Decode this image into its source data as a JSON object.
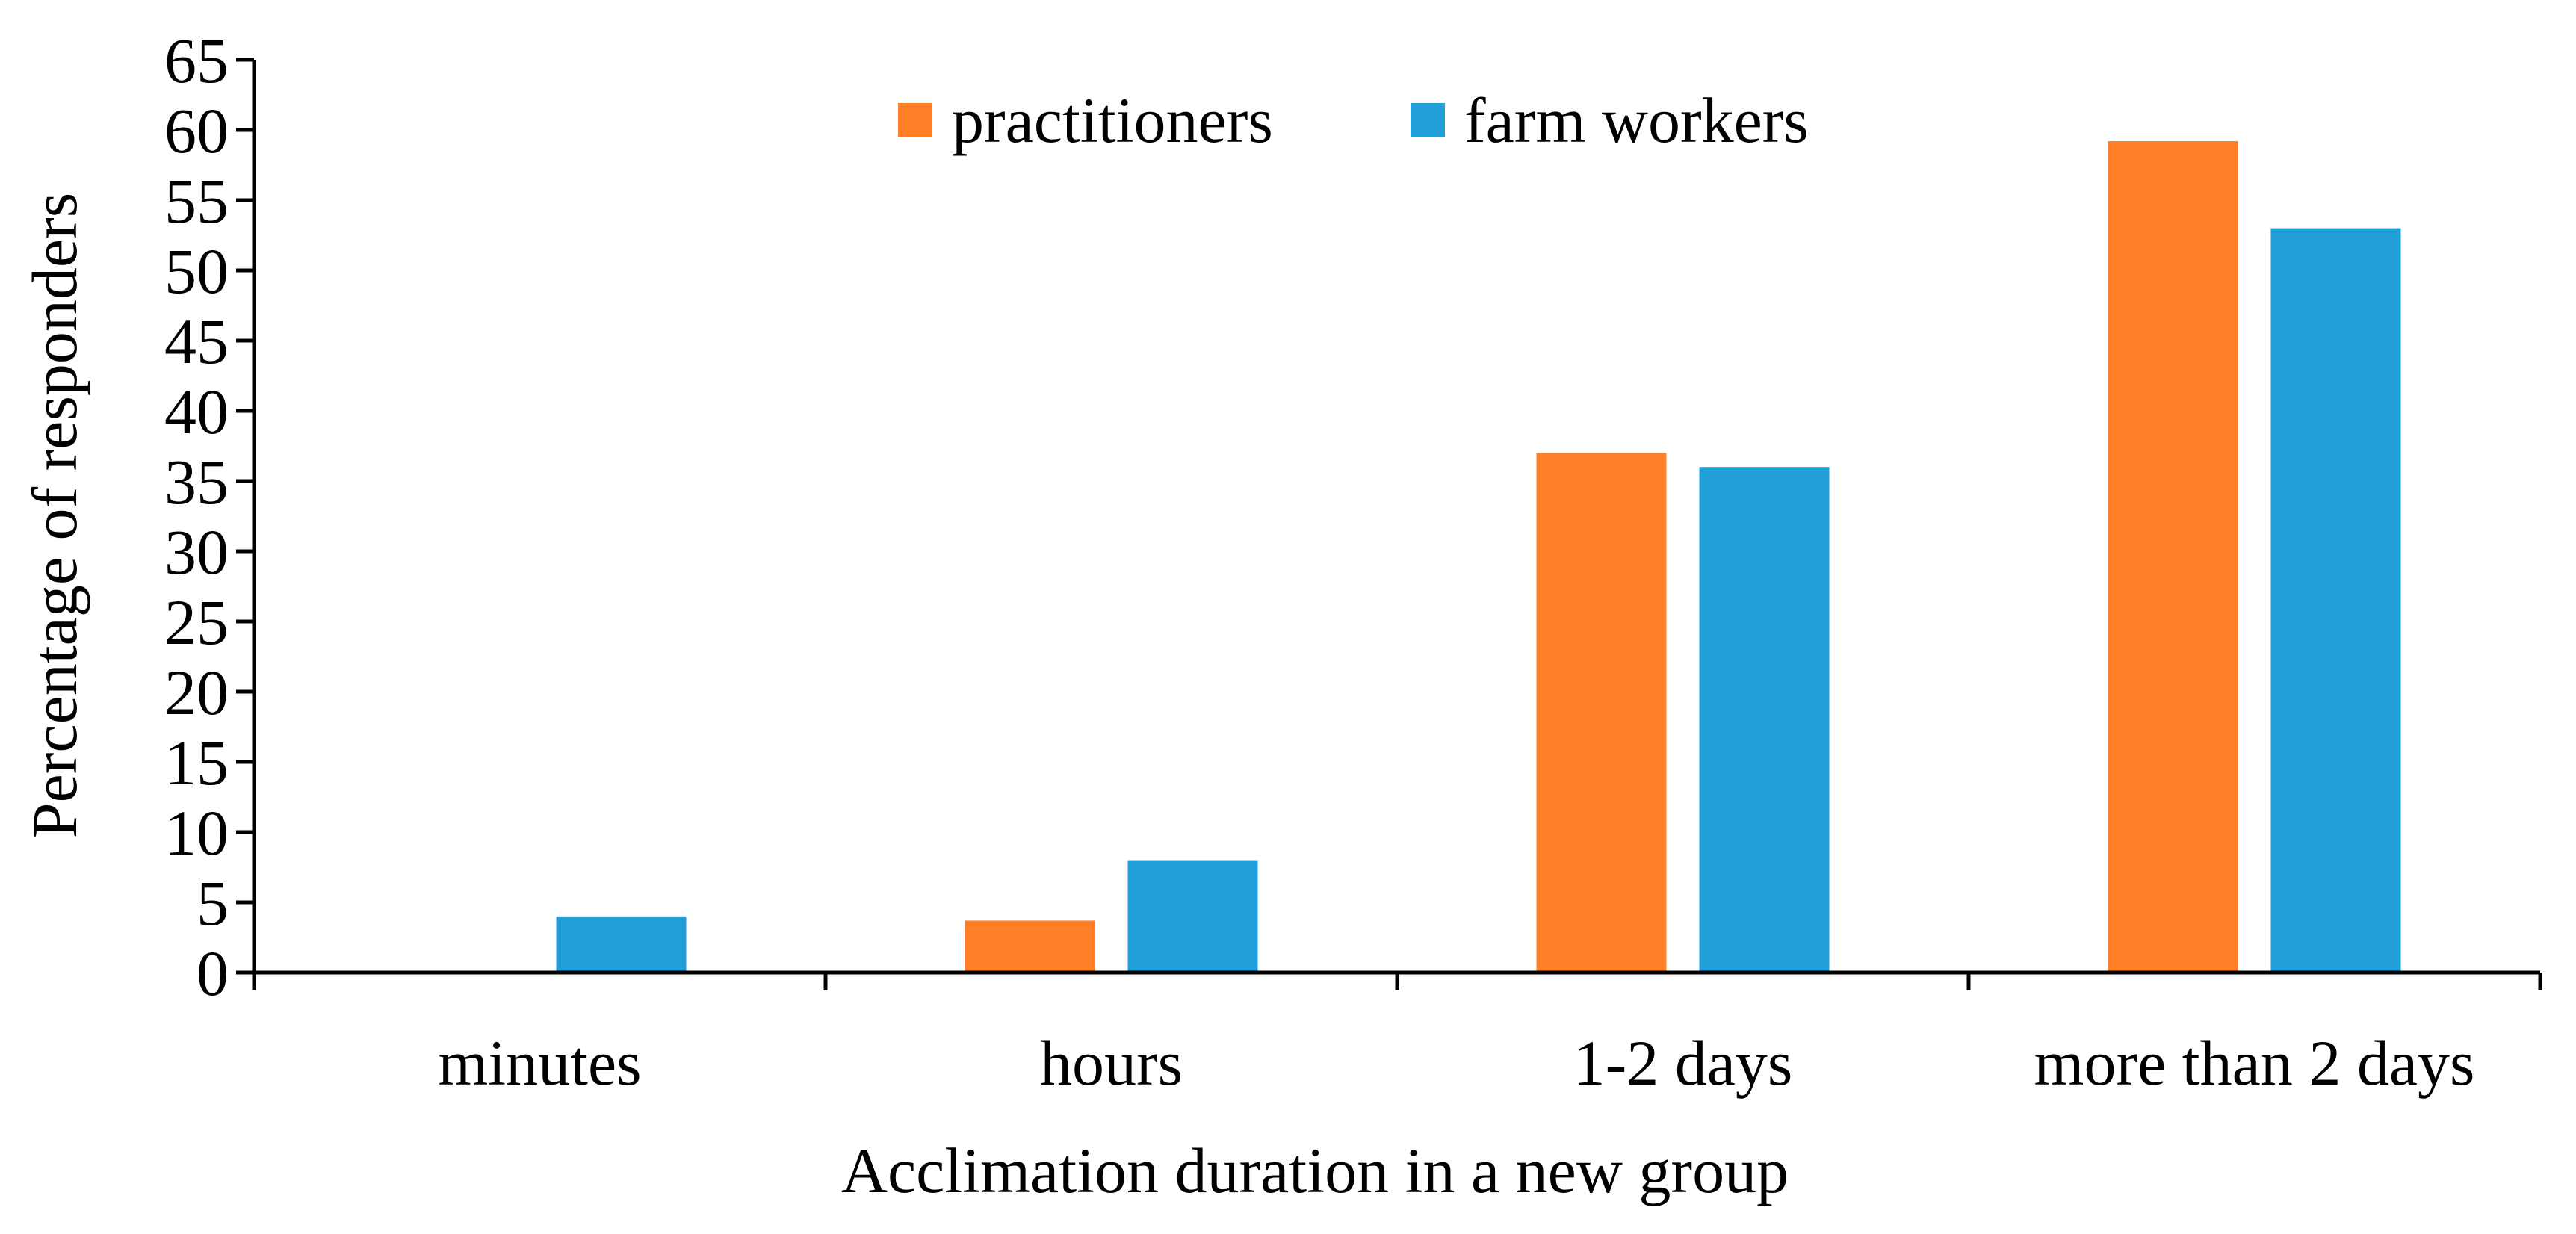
{
  "chart_data": {
    "type": "bar",
    "title": "",
    "xlabel": "Acclimation duration in a new group",
    "ylabel": "Percentage of responders",
    "categories": [
      "minutes",
      "hours",
      "1-2 days",
      "more than 2 days"
    ],
    "series": [
      {
        "name": "practitioners",
        "color": "#FF7F27",
        "values": [
          0,
          3.7,
          37,
          59.2
        ]
      },
      {
        "name": "farm workers",
        "color": "#1F9ED8",
        "values": [
          4,
          8,
          36,
          53
        ]
      }
    ],
    "ylim": [
      0,
      65
    ],
    "yticks": [
      "0",
      "5",
      "10",
      "15",
      "20",
      "25",
      "30",
      "35",
      "40",
      "45",
      "50",
      "55",
      "60",
      "65"
    ],
    "grid": false,
    "legend": "top-center"
  }
}
